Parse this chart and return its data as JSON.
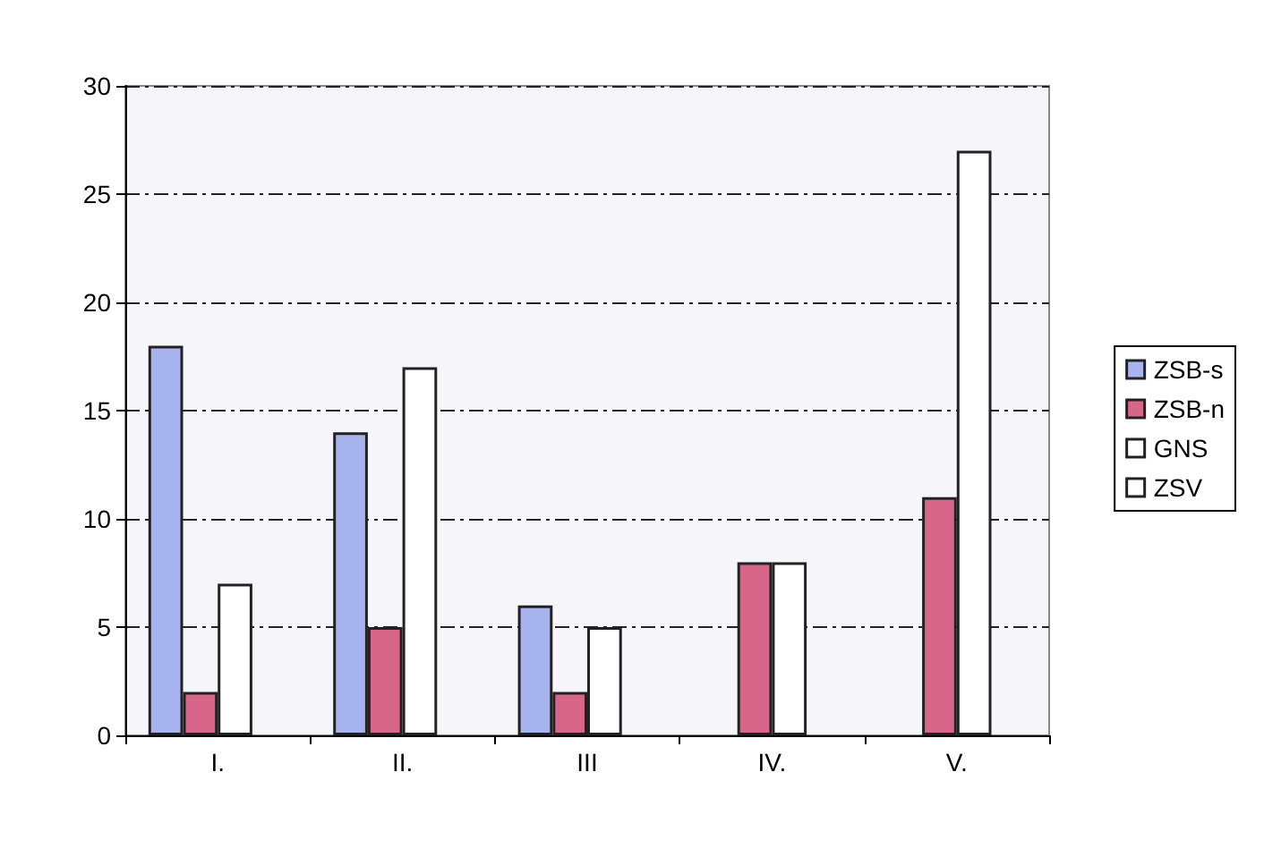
{
  "chart_data": {
    "type": "bar",
    "categories": [
      "I.",
      "II.",
      "III",
      "IV.",
      "V."
    ],
    "series": [
      {
        "name": "ZSB-s",
        "color": "#a8b4f0",
        "values": [
          18,
          14,
          6,
          null,
          null
        ]
      },
      {
        "name": "ZSB-n",
        "color": "#d8668a",
        "values": [
          2,
          5,
          2,
          8,
          11
        ]
      },
      {
        "name": "GNS",
        "color": "#ffffff",
        "values": [
          7,
          17,
          5,
          8,
          27
        ]
      },
      {
        "name": "ZSV",
        "color": "#ffffff",
        "values": [
          null,
          null,
          null,
          null,
          null
        ]
      }
    ],
    "ylim": [
      0,
      30
    ],
    "yticks": [
      0,
      5,
      10,
      15,
      20,
      25,
      30
    ],
    "grid": "y",
    "legend": "right"
  }
}
